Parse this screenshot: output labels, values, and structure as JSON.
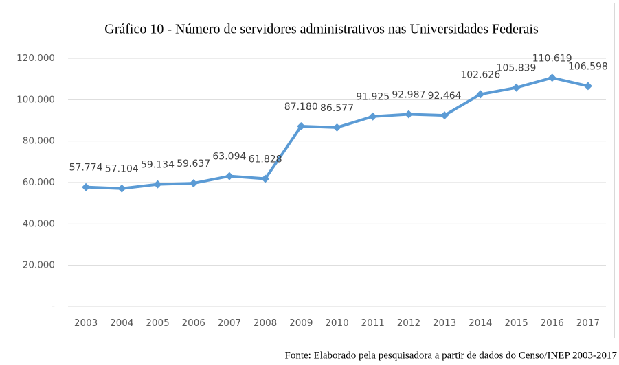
{
  "chart_data": {
    "type": "line",
    "title": "Gráfico 10 - Número de servidores administrativos nas Universidades Federais",
    "categories": [
      "2003",
      "2004",
      "2005",
      "2006",
      "2007",
      "2008",
      "2009",
      "2010",
      "2011",
      "2012",
      "2013",
      "2014",
      "2015",
      "2016",
      "2017"
    ],
    "values": [
      57774,
      57104,
      59134,
      59637,
      63094,
      61828,
      87180,
      86577,
      91925,
      92987,
      92464,
      102626,
      105839,
      110619,
      106598
    ],
    "value_labels": [
      "57.774",
      "57.104",
      "59.134",
      "59.637",
      "63.094",
      "61.828",
      "87.180",
      "86.577",
      "91.925",
      "92.987",
      "92.464",
      "102.626",
      "105.839",
      "110.619",
      "106.598"
    ],
    "color": "#5b9bd5",
    "ylim": [
      0,
      120000
    ],
    "yticks": [
      {
        "value": 0,
        "label": "-"
      },
      {
        "value": 20000,
        "label": "20.000"
      },
      {
        "value": 40000,
        "label": "40.000"
      },
      {
        "value": 60000,
        "label": "60.000"
      },
      {
        "value": 80000,
        "label": "80.000"
      },
      {
        "value": 100000,
        "label": "100.000"
      },
      {
        "value": 120000,
        "label": "120.000"
      }
    ],
    "grid": true,
    "source": "Fonte: Elaborado pela pesquisadora  a partir de dados do Censo/INEP 2003-2017"
  }
}
